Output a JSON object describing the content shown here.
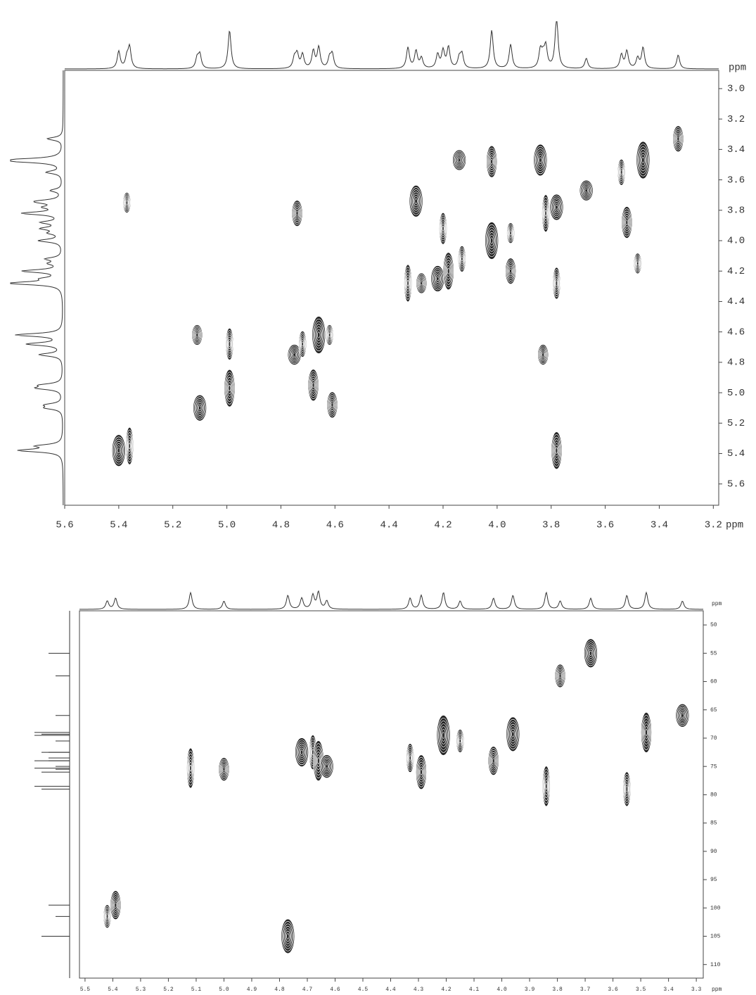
{
  "chart_data": [
    {
      "type": "contour",
      "color": "#000",
      "x_label": "ppm",
      "y_label": "ppm",
      "xlim": [
        5.6,
        3.18
      ],
      "ylim": [
        2.88,
        5.74
      ],
      "xticks": [
        5.6,
        5.4,
        5.2,
        {
          "value": 5,
          "label": "5.0"
        },
        4.8,
        4.6,
        4.4,
        4.2,
        {
          "value": 4,
          "label": "4.0"
        },
        3.8,
        3.6,
        3.4,
        3.2
      ],
      "yticks": [
        {
          "value": 3,
          "label": "3.0"
        },
        3.2,
        3.4,
        3.6,
        3.8,
        {
          "value": 4,
          "label": "4.0"
        },
        4.2,
        4.4,
        4.6,
        4.8,
        {
          "value": 5,
          "label": "5.0"
        },
        5.2,
        5.4,
        5.6
      ],
      "x": [
        5.37,
        4.74,
        5.4,
        5.36,
        5.11,
        5.1,
        4.99,
        4.99,
        4.75,
        4.72,
        4.68,
        4.66,
        4.62,
        4.61,
        4.3,
        4.33,
        4.28,
        4.22,
        4.2,
        4.18,
        4.14,
        4.13,
        4.02,
        4.02,
        3.95,
        3.95,
        3.84,
        3.82,
        3.83,
        3.78,
        3.78,
        3.78,
        3.67,
        3.54,
        3.52,
        3.46,
        3.48,
        3.33
      ],
      "values": [
        3.75,
        3.82,
        5.38,
        5.35,
        4.62,
        5.1,
        4.68,
        4.97,
        4.75,
        4.68,
        4.95,
        4.62,
        4.62,
        5.08,
        3.74,
        4.28,
        4.28,
        4.25,
        3.92,
        4.2,
        3.47,
        4.12,
        3.48,
        4.0,
        3.95,
        4.2,
        3.47,
        3.82,
        4.75,
        3.78,
        4.28,
        5.38,
        3.67,
        3.55,
        3.88,
        3.47,
        4.15,
        3.33
      ]
    },
    {
      "type": "contour",
      "color": "#000",
      "x_label": "ppm",
      "y_label": "ppm",
      "xlim": [
        5.52,
        3.275
      ],
      "ylim": [
        47.5,
        112.4
      ],
      "xticks": [
        5.5,
        5.4,
        5.3,
        5.2,
        5.1,
        {
          "value": 5,
          "label": "5.0"
        },
        4.9,
        4.8,
        4.7,
        4.6,
        4.5,
        4.4,
        4.3,
        4.2,
        4.1,
        {
          "value": 4,
          "label": "4.0"
        },
        3.9,
        3.8,
        3.7,
        3.6,
        3.5,
        3.4,
        3.3
      ],
      "yticks": [
        50,
        55,
        60,
        65,
        70,
        75,
        80,
        85,
        90,
        95,
        100,
        105,
        110
      ],
      "x": [
        5.42,
        5.39,
        4.77,
        5.12,
        5.0,
        4.72,
        4.68,
        4.66,
        4.63,
        4.33,
        4.29,
        4.21,
        4.15,
        4.03,
        3.96,
        3.84,
        3.79,
        3.68,
        3.55,
        3.48,
        3.35
      ],
      "values": [
        101.5,
        99.5,
        105,
        75.3,
        75.5,
        72.5,
        72.5,
        74,
        75,
        73.5,
        76,
        69.5,
        70.5,
        74,
        69.3,
        78.5,
        59,
        55,
        79,
        69,
        66
      ]
    }
  ]
}
